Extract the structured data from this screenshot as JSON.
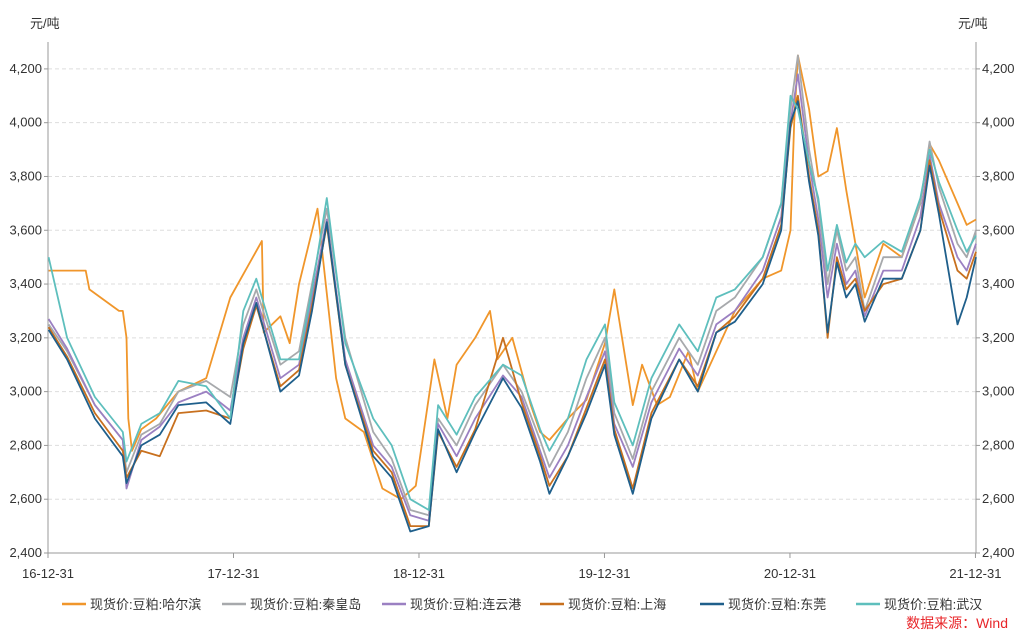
{
  "chart_data": {
    "type": "line",
    "title": "",
    "ylabel_left": "元/吨",
    "ylabel_right": "元/吨",
    "ylim": [
      2400,
      4300
    ],
    "yticks": [
      2400,
      2600,
      2800,
      3000,
      3200,
      3400,
      3600,
      3800,
      4000,
      4200
    ],
    "ytick_labels": [
      "2,400",
      "2,600",
      "2,800",
      "3,000",
      "3,200",
      "3,400",
      "3,600",
      "3,800",
      "4,000",
      "4,200"
    ],
    "xlim": [
      2016.997,
      2022.0
    ],
    "xticks": [
      2016.997,
      2017.997,
      2018.997,
      2019.997,
      2020.997,
      2021.997
    ],
    "xtick_labels": [
      "16-12-31",
      "17-12-31",
      "18-12-31",
      "19-12-31",
      "20-12-31",
      "21-12-31"
    ],
    "grid": "horizontal dashed",
    "legend_position": "bottom",
    "source": "数据来源：Wind",
    "series": [
      {
        "name": "现货价:豆粕:哈尔滨",
        "color": "#f0962b",
        "x": [
          2017.0,
          2017.2,
          2017.22,
          2017.38,
          2017.4,
          2017.42,
          2017.43,
          2017.45,
          2017.5,
          2017.58,
          2017.7,
          2017.85,
          2017.98,
          2018.15,
          2018.16,
          2018.25,
          2018.3,
          2018.35,
          2018.45,
          2018.55,
          2018.6,
          2018.7,
          2018.8,
          2018.9,
          2018.98,
          2019.08,
          2019.15,
          2019.2,
          2019.3,
          2019.38,
          2019.42,
          2019.5,
          2019.6,
          2019.65,
          2019.7,
          2019.8,
          2019.9,
          2020.0,
          2020.05,
          2020.15,
          2020.2,
          2020.28,
          2020.35,
          2020.45,
          2020.5,
          2020.6,
          2020.7,
          2020.85,
          2020.95,
          2021.0,
          2021.02,
          2021.04,
          2021.1,
          2021.15,
          2021.2,
          2021.25,
          2021.3,
          2021.35,
          2021.4,
          2021.5,
          2021.6,
          2021.7,
          2021.75,
          2021.8,
          2021.9,
          2021.95,
          2022.0
        ],
        "y": [
          3450,
          3450,
          3380,
          3300,
          3300,
          3200,
          2900,
          2780,
          2860,
          2900,
          3000,
          3050,
          3350,
          3560,
          3220,
          3280,
          3180,
          3400,
          3680,
          3050,
          2900,
          2850,
          2640,
          2600,
          2650,
          3120,
          2900,
          3100,
          3200,
          3300,
          3120,
          3200,
          2950,
          2850,
          2820,
          2900,
          2970,
          3180,
          3380,
          2950,
          3100,
          2950,
          2980,
          3150,
          3000,
          3150,
          3300,
          3420,
          3450,
          3600,
          4000,
          4250,
          4050,
          3800,
          3820,
          3980,
          3750,
          3550,
          3350,
          3550,
          3500,
          3700,
          3920,
          3860,
          3700,
          3620,
          3640
        ]
      },
      {
        "name": "现货价:豆粕:秦皇岛",
        "color": "#a7a9ac",
        "x": [
          2017.0,
          2017.1,
          2017.25,
          2017.4,
          2017.42,
          2017.5,
          2017.6,
          2017.7,
          2017.85,
          2017.98,
          2018.05,
          2018.12,
          2018.25,
          2018.35,
          2018.42,
          2018.5,
          2018.6,
          2018.75,
          2018.85,
          2018.95,
          2019.05,
          2019.1,
          2019.2,
          2019.3,
          2019.45,
          2019.55,
          2019.65,
          2019.7,
          2019.8,
          2019.9,
          2020.0,
          2020.05,
          2020.15,
          2020.25,
          2020.4,
          2020.5,
          2020.6,
          2020.7,
          2020.85,
          2020.95,
          2021.0,
          2021.04,
          2021.1,
          2021.15,
          2021.2,
          2021.25,
          2021.3,
          2021.35,
          2021.4,
          2021.5,
          2021.6,
          2021.7,
          2021.75,
          2021.8,
          2021.9,
          2021.95,
          2022.0
        ],
        "y": [
          3250,
          3150,
          2950,
          2820,
          2700,
          2840,
          2880,
          3000,
          3040,
          2980,
          3250,
          3380,
          3100,
          3150,
          3400,
          3680,
          3200,
          2850,
          2750,
          2560,
          2540,
          2900,
          2800,
          2950,
          3100,
          3000,
          2820,
          2720,
          2850,
          3050,
          3200,
          2920,
          2750,
          3000,
          3200,
          3100,
          3300,
          3350,
          3500,
          3700,
          4050,
          4250,
          3900,
          3700,
          3400,
          3600,
          3450,
          3500,
          3300,
          3500,
          3500,
          3700,
          3930,
          3760,
          3550,
          3500,
          3600
        ]
      },
      {
        "name": "现货价:豆粕:连云港",
        "color": "#9b80c2",
        "x": [
          2017.0,
          2017.1,
          2017.25,
          2017.4,
          2017.42,
          2017.5,
          2017.6,
          2017.7,
          2017.85,
          2017.98,
          2018.05,
          2018.12,
          2018.25,
          2018.35,
          2018.42,
          2018.5,
          2018.6,
          2018.75,
          2018.85,
          2018.95,
          2019.05,
          2019.1,
          2019.2,
          2019.3,
          2019.45,
          2019.55,
          2019.65,
          2019.7,
          2019.8,
          2019.9,
          2020.0,
          2020.05,
          2020.15,
          2020.25,
          2020.4,
          2020.5,
          2020.6,
          2020.7,
          2020.85,
          2020.95,
          2021.0,
          2021.04,
          2021.1,
          2021.15,
          2021.2,
          2021.25,
          2021.3,
          2021.35,
          2021.4,
          2021.5,
          2021.6,
          2021.7,
          2021.75,
          2021.8,
          2021.9,
          2021.95,
          2022.0
        ],
        "y": [
          3270,
          3160,
          2950,
          2820,
          2640,
          2820,
          2870,
          2960,
          3000,
          2930,
          3200,
          3350,
          3050,
          3100,
          3350,
          3640,
          3120,
          2800,
          2720,
          2540,
          2520,
          2880,
          2760,
          2900,
          3060,
          2980,
          2780,
          2680,
          2800,
          2980,
          3150,
          2880,
          2720,
          2960,
          3160,
          3060,
          3250,
          3300,
          3450,
          3650,
          4000,
          4180,
          3850,
          3640,
          3350,
          3550,
          3400,
          3450,
          3280,
          3450,
          3450,
          3650,
          3880,
          3700,
          3500,
          3450,
          3550
        ]
      },
      {
        "name": "现货价:豆粕:上海",
        "color": "#c8701e",
        "x": [
          2017.0,
          2017.1,
          2017.25,
          2017.4,
          2017.42,
          2017.5,
          2017.6,
          2017.7,
          2017.85,
          2017.98,
          2018.05,
          2018.12,
          2018.25,
          2018.35,
          2018.42,
          2018.5,
          2018.6,
          2018.75,
          2018.85,
          2018.95,
          2019.05,
          2019.1,
          2019.2,
          2019.3,
          2019.45,
          2019.55,
          2019.65,
          2019.7,
          2019.8,
          2019.9,
          2020.0,
          2020.05,
          2020.15,
          2020.25,
          2020.4,
          2020.5,
          2020.6,
          2020.7,
          2020.85,
          2020.95,
          2021.0,
          2021.04,
          2021.1,
          2021.15,
          2021.2,
          2021.25,
          2021.3,
          2021.35,
          2021.4,
          2021.5,
          2021.6,
          2021.7,
          2021.75,
          2021.8,
          2021.9,
          2021.95,
          2022.0
        ],
        "y": [
          3240,
          3130,
          2920,
          2780,
          2680,
          2780,
          2760,
          2920,
          2930,
          2900,
          3160,
          3320,
          3020,
          3080,
          3320,
          3620,
          3100,
          2780,
          2700,
          2500,
          2500,
          2850,
          2720,
          2860,
          3200,
          2960,
          2760,
          2650,
          2760,
          2940,
          3120,
          2860,
          2640,
          2920,
          3120,
          3020,
          3220,
          3280,
          3420,
          3620,
          3980,
          4100,
          3800,
          3600,
          3200,
          3500,
          3380,
          3420,
          3300,
          3400,
          3420,
          3600,
          3860,
          3680,
          3450,
          3420,
          3520
        ]
      },
      {
        "name": "现货价:豆粕:东莞",
        "color": "#1f5f8b",
        "x": [
          2017.0,
          2017.1,
          2017.25,
          2017.4,
          2017.42,
          2017.5,
          2017.6,
          2017.7,
          2017.85,
          2017.98,
          2018.05,
          2018.12,
          2018.25,
          2018.35,
          2018.42,
          2018.5,
          2018.6,
          2018.75,
          2018.85,
          2018.95,
          2019.05,
          2019.1,
          2019.2,
          2019.3,
          2019.45,
          2019.55,
          2019.65,
          2019.7,
          2019.8,
          2019.9,
          2020.0,
          2020.05,
          2020.15,
          2020.25,
          2020.4,
          2020.5,
          2020.6,
          2020.7,
          2020.85,
          2020.95,
          2021.0,
          2021.04,
          2021.1,
          2021.15,
          2021.2,
          2021.25,
          2021.3,
          2021.35,
          2021.4,
          2021.5,
          2021.6,
          2021.7,
          2021.75,
          2021.8,
          2021.9,
          2021.95,
          2022.0
        ],
        "y": [
          3230,
          3120,
          2900,
          2760,
          2660,
          2800,
          2840,
          2950,
          2960,
          2880,
          3180,
          3330,
          3000,
          3060,
          3300,
          3630,
          3100,
          2760,
          2680,
          2480,
          2500,
          2860,
          2700,
          2850,
          3050,
          2940,
          2740,
          2620,
          2760,
          2920,
          3100,
          2840,
          2620,
          2900,
          3120,
          3000,
          3220,
          3260,
          3400,
          3600,
          4000,
          4080,
          3780,
          3580,
          3220,
          3480,
          3350,
          3400,
          3260,
          3420,
          3420,
          3600,
          3840,
          3660,
          3250,
          3350,
          3500
        ]
      },
      {
        "name": "现货价:豆粕:武汉",
        "color": "#5ebfbd",
        "x": [
          2017.0,
          2017.1,
          2017.25,
          2017.4,
          2017.42,
          2017.5,
          2017.6,
          2017.7,
          2017.85,
          2017.98,
          2018.05,
          2018.12,
          2018.25,
          2018.35,
          2018.42,
          2018.5,
          2018.6,
          2018.75,
          2018.85,
          2018.95,
          2019.05,
          2019.1,
          2019.2,
          2019.3,
          2019.45,
          2019.55,
          2019.65,
          2019.7,
          2019.8,
          2019.9,
          2020.0,
          2020.05,
          2020.15,
          2020.25,
          2020.4,
          2020.5,
          2020.6,
          2020.7,
          2020.85,
          2020.95,
          2021.0,
          2021.04,
          2021.1,
          2021.15,
          2021.2,
          2021.25,
          2021.3,
          2021.35,
          2021.4,
          2021.5,
          2021.6,
          2021.7,
          2021.75,
          2021.8,
          2021.9,
          2021.95,
          2022.0
        ],
        "y": [
          3500,
          3200,
          2980,
          2850,
          2740,
          2880,
          2920,
          3040,
          3020,
          2900,
          3300,
          3420,
          3120,
          3120,
          3380,
          3720,
          3180,
          2900,
          2800,
          2600,
          2560,
          2950,
          2840,
          2980,
          3100,
          3060,
          2860,
          2780,
          2900,
          3120,
          3250,
          2960,
          2800,
          3050,
          3250,
          3150,
          3350,
          3380,
          3500,
          3700,
          4100,
          4050,
          3850,
          3720,
          3450,
          3620,
          3480,
          3550,
          3500,
          3560,
          3520,
          3720,
          3900,
          3780,
          3600,
          3520,
          3580
        ]
      }
    ]
  }
}
